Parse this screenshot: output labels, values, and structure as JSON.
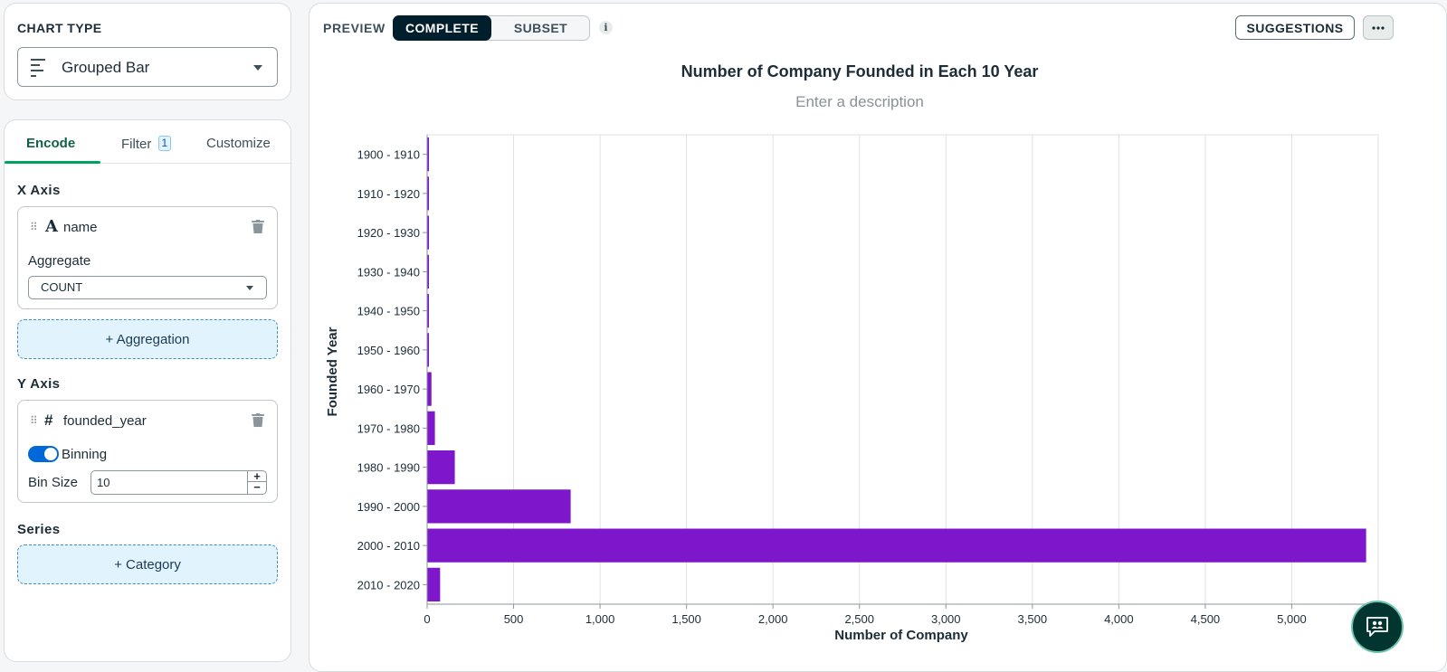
{
  "chart_type_panel": {
    "label": "CHART TYPE",
    "selected": "Grouped Bar",
    "icon": "bar-chart-icon"
  },
  "tabs": [
    {
      "label": "Encode",
      "active": true
    },
    {
      "label": "Filter",
      "badge": "1",
      "active": false
    },
    {
      "label": "Customize",
      "active": false
    }
  ],
  "x_axis": {
    "title": "X Axis",
    "field_type_icon": "A",
    "field_name": "name",
    "aggregate_label": "Aggregate",
    "aggregate_value": "COUNT",
    "add_button": "+ Aggregation"
  },
  "y_axis": {
    "title": "Y Axis",
    "field_type_icon": "#",
    "field_name": "founded_year",
    "binning_label": "Binning",
    "binning_on": true,
    "bin_size_label": "Bin Size",
    "bin_size_value": "10"
  },
  "series": {
    "title": "Series",
    "add_button": "+ Category"
  },
  "preview": {
    "label": "PREVIEW",
    "toggle_complete": "COMPLETE",
    "toggle_subset": "SUBSET",
    "info_icon": "info-icon",
    "suggestions_button": "SUGGESTIONS",
    "more_icon": "ellipsis-icon",
    "chat_icon": "chat-people-icon"
  },
  "colors": {
    "bar": "#7e17cc",
    "accent_green": "#00a35c",
    "toggle_dark": "#001e2b"
  },
  "chart_data": {
    "type": "bar",
    "orientation": "horizontal",
    "title": "Number of Company Founded in Each 10 Year",
    "description_placeholder": "Enter a description",
    "xlabel": "Number of Company",
    "ylabel": "Founded Year",
    "categories": [
      "1900 - 1910",
      "1910 - 1920",
      "1920 - 1930",
      "1930 - 1940",
      "1940 - 1950",
      "1950 - 1960",
      "1960 - 1970",
      "1970 - 1980",
      "1980 - 1990",
      "1990 - 2000",
      "2000 - 2010",
      "2010 - 2020"
    ],
    "values": [
      3,
      4,
      10,
      5,
      7,
      8,
      25,
      45,
      160,
      830,
      5430,
      75
    ],
    "xlim": [
      0,
      5500
    ],
    "xticks": [
      0,
      500,
      1000,
      1500,
      2000,
      2500,
      3000,
      3500,
      4000,
      4500,
      5000
    ],
    "xtick_labels": [
      "0",
      "500",
      "1,000",
      "1,500",
      "2,000",
      "2,500",
      "3,000",
      "3,500",
      "4,000",
      "4,500",
      "5,000"
    ],
    "grid": true
  }
}
